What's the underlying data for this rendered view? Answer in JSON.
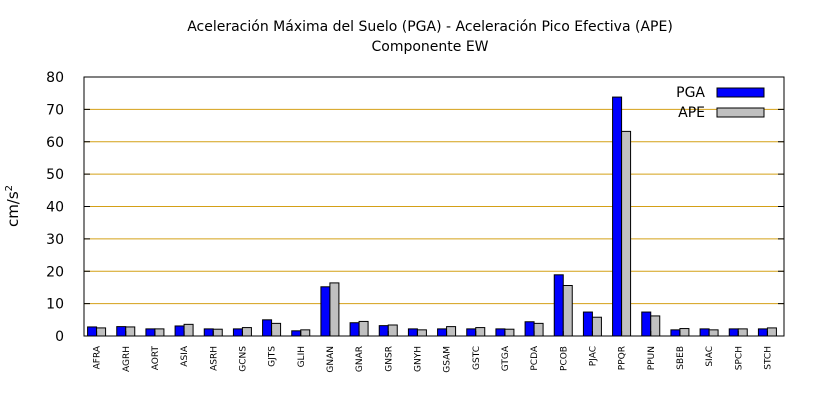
{
  "chart_data": {
    "type": "bar",
    "title": "Aceleración Máxima del Suelo (PGA) -  Aceleración Pico Efectiva (APE)",
    "subtitle": "Componente EW",
    "ylabel": "cm/s",
    "ylabel_superscript": "2",
    "ylim": [
      0,
      80
    ],
    "yticks": [
      0,
      10,
      20,
      30,
      40,
      50,
      60,
      70,
      80
    ],
    "grid": true,
    "legend_position": "top-right",
    "categories": [
      "AFRA",
      "AGRH",
      "AORT",
      "ASIA",
      "ASRH",
      "GCNS",
      "GJTS",
      "GLIH",
      "GNAN",
      "GNAR",
      "GNSR",
      "GNYH",
      "GSAM",
      "GSTC",
      "GTGA",
      "PCDA",
      "PCOB",
      "PJAC",
      "PPQR",
      "PPUN",
      "SBEB",
      "SIAC",
      "SPCH",
      "STCH"
    ],
    "series": [
      {
        "name": "PGA",
        "color": "#0000ff",
        "values": [
          2.8,
          2.9,
          2.2,
          3.1,
          2.2,
          2.2,
          5.0,
          1.6,
          15.2,
          4.1,
          3.2,
          2.2,
          2.2,
          2.2,
          2.2,
          4.4,
          18.9,
          7.4,
          73.8,
          7.4,
          1.9,
          2.2,
          2.2,
          2.2
        ]
      },
      {
        "name": "APE",
        "color": "#c0c0c0",
        "values": [
          2.5,
          2.8,
          2.2,
          3.6,
          2.1,
          2.6,
          3.9,
          1.9,
          16.4,
          4.5,
          3.4,
          1.9,
          2.9,
          2.6,
          2.1,
          3.9,
          15.6,
          5.8,
          63.2,
          6.2,
          2.3,
          1.9,
          2.2,
          2.5
        ]
      }
    ],
    "grid_color": "#d4a017"
  }
}
